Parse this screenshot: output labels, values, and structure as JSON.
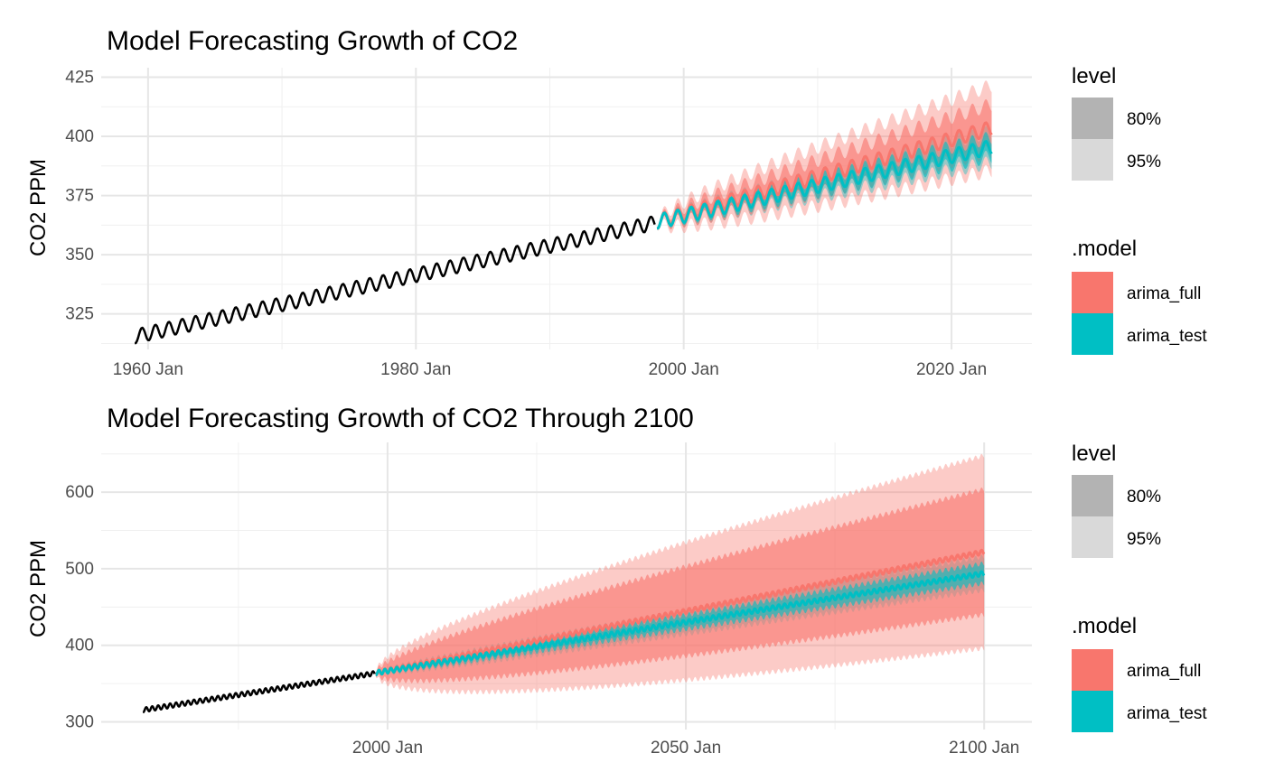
{
  "chart_data": [
    {
      "type": "line",
      "title": "Model Forecasting Growth of CO2",
      "xlabel": "",
      "ylabel": "CO2 PPM",
      "xlim": [
        1956.5,
        2026
      ],
      "ylim": [
        310,
        429
      ],
      "x_ticks": [
        1960,
        1980,
        2000,
        2020
      ],
      "x_tick_labels": [
        "1960 Jan",
        "1980 Jan",
        "2000 Jan",
        "2020 Jan"
      ],
      "y_ticks": [
        325,
        350,
        375,
        400,
        425
      ],
      "y_tick_labels": [
        "325",
        "350",
        "375",
        "400",
        "425"
      ],
      "grid": true,
      "legend_position": "right",
      "observed": {
        "name": "",
        "color": "#000000",
        "x_range": [
          1959.0,
          1997.9
        ],
        "trend_start": 315.5,
        "trend_end": 363.5,
        "seasonal_amplitude": 3.0
      },
      "series": [
        {
          "name": "arima_full",
          "color": "#F8766D",
          "x_range": [
            1998.0,
            2023.0
          ],
          "mean_start": 364.0,
          "mean_end": 403.5,
          "seasonal_amplitude": 3.0,
          "interval_80_halfwidth_end": 10.0,
          "interval_95_halfwidth_end": 18.0
        },
        {
          "name": "arima_test",
          "color": "#00BFC4",
          "x_range": [
            1998.0,
            2023.0
          ],
          "mean_start": 364.0,
          "mean_end": 395.5,
          "seasonal_amplitude": 3.0,
          "interval_80_halfwidth_end": 4.0,
          "interval_95_halfwidth_end": 6.5
        }
      ]
    },
    {
      "type": "line",
      "title": "Model Forecasting Growth of CO2 Through 2100",
      "xlabel": "",
      "ylabel": "CO2 PPM",
      "xlim": [
        1952,
        2108
      ],
      "ylim": [
        290,
        665
      ],
      "x_ticks": [
        2000,
        2050,
        2100
      ],
      "x_tick_labels": [
        "2000 Jan",
        "2050 Jan",
        "2100 Jan"
      ],
      "y_ticks": [
        300,
        400,
        500,
        600
      ],
      "y_tick_labels": [
        "300",
        "400",
        "500",
        "600"
      ],
      "grid": true,
      "legend_position": "right",
      "observed": {
        "name": "",
        "color": "#000000",
        "x_range": [
          1959.0,
          1997.9
        ],
        "trend_start": 315.5,
        "trend_end": 363.5,
        "seasonal_amplitude": 3.0
      },
      "series": [
        {
          "name": "arima_full",
          "color": "#F8766D",
          "x_range": [
            1998.0,
            2100.0
          ],
          "mean_start": 364.0,
          "mean_end": 522.0,
          "seasonal_amplitude": 3.0,
          "interval_80_halfwidth_end": 82.0,
          "interval_95_halfwidth_end": 126.0
        },
        {
          "name": "arima_test",
          "color": "#00BFC4",
          "x_range": [
            1998.0,
            2100.0
          ],
          "mean_start": 364.0,
          "mean_end": 494.0,
          "seasonal_amplitude": 3.0,
          "interval_80_halfwidth_end": 13.0,
          "interval_95_halfwidth_end": 22.0
        }
      ]
    }
  ],
  "legends": [
    {
      "level_title": "level",
      "level_items": [
        {
          "label": "80%",
          "color": "#B3B3B3"
        },
        {
          "label": "95%",
          "color": "#D9D9D9"
        }
      ],
      "model_title": ".model",
      "model_items": [
        {
          "label": "arima_full",
          "color": "#F8766D"
        },
        {
          "label": "arima_test",
          "color": "#00BFC4"
        }
      ]
    },
    {
      "level_title": "level",
      "level_items": [
        {
          "label": "80%",
          "color": "#B3B3B3"
        },
        {
          "label": "95%",
          "color": "#D9D9D9"
        }
      ],
      "model_title": ".model",
      "model_items": [
        {
          "label": "arima_full",
          "color": "#F8766D"
        },
        {
          "label": "arima_test",
          "color": "#00BFC4"
        }
      ]
    }
  ]
}
